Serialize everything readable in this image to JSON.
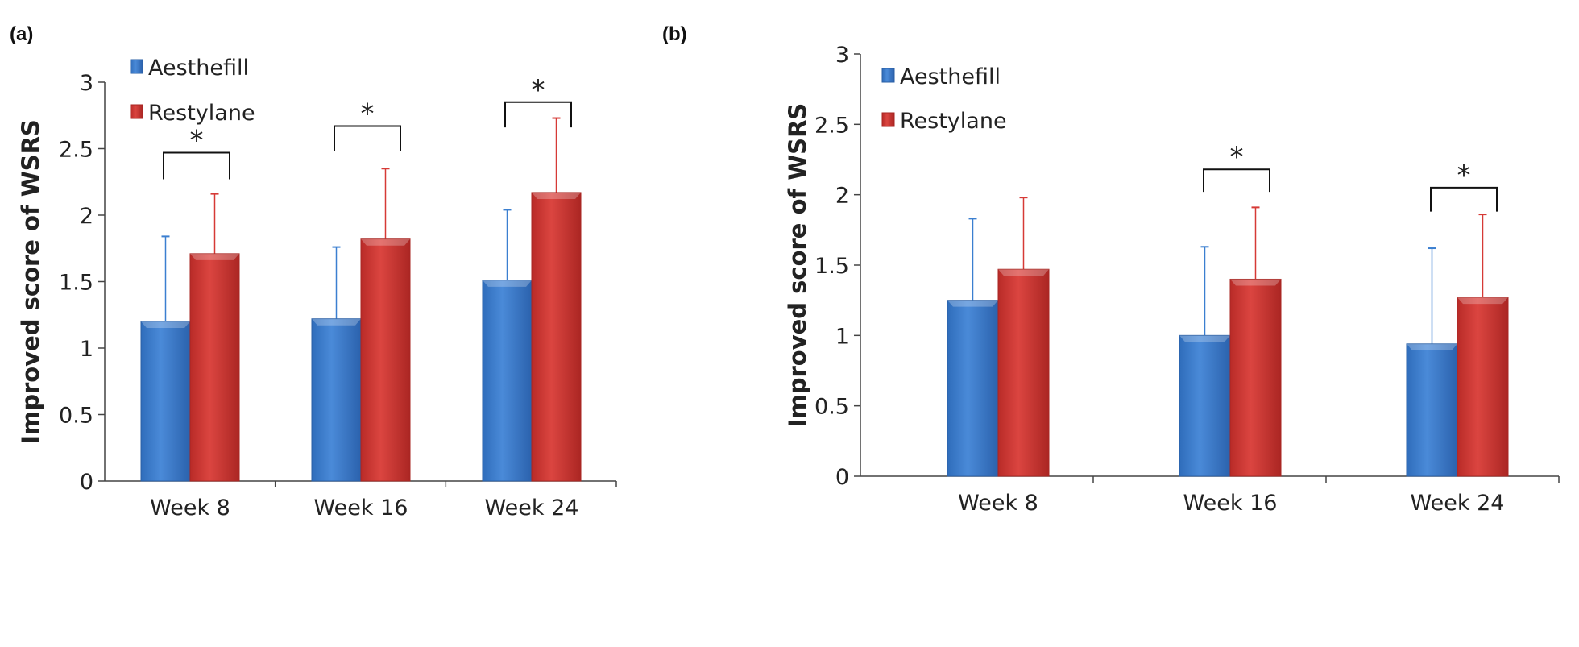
{
  "colors": {
    "Aesthefill": "#3b7fd0",
    "Restylane": "#d63a36",
    "Aesthefill_dark": "#2a5fa5",
    "Restylane_dark": "#a82622"
  },
  "chart_data": [
    {
      "type": "bar",
      "panel_label": "(a)",
      "ylabel": "Improved score of WSRS",
      "xlabel": "",
      "ylim": [
        0,
        3
      ],
      "yticks": [
        "0",
        "0.5",
        "1",
        "1.5",
        "2",
        "2.5",
        "3"
      ],
      "categories": [
        "Week 8",
        "Week 16",
        "Week 24"
      ],
      "legend": "top-left",
      "grid": false,
      "series": [
        {
          "name": "Aesthefill",
          "values": [
            1.2,
            1.22,
            1.51
          ],
          "error_upper": [
            1.84,
            1.76,
            2.04
          ]
        },
        {
          "name": "Restylane",
          "values": [
            1.71,
            1.82,
            2.17
          ],
          "error_upper": [
            2.16,
            2.35,
            2.73
          ]
        }
      ],
      "significance": [
        {
          "category": "Week 8",
          "marker": "*",
          "low": 2.27,
          "high": 2.47
        },
        {
          "category": "Week 16",
          "marker": "*",
          "low": 2.48,
          "high": 2.67
        },
        {
          "category": "Week 24",
          "marker": "*",
          "low": 2.66,
          "high": 2.85
        }
      ]
    },
    {
      "type": "bar",
      "panel_label": "(b)",
      "ylabel": "Improved score of WSRS",
      "xlabel": "",
      "ylim": [
        0,
        3
      ],
      "yticks": [
        "0",
        "0.5",
        "1",
        "1.5",
        "2",
        "2.5",
        "3"
      ],
      "categories": [
        "Week 8",
        "Week 16",
        "Week 24"
      ],
      "legend": "top-left",
      "grid": false,
      "series": [
        {
          "name": "Aesthefill",
          "values": [
            1.25,
            1.0,
            0.94
          ],
          "error_upper": [
            1.83,
            1.63,
            1.62
          ]
        },
        {
          "name": "Restylane",
          "values": [
            1.47,
            1.4,
            1.27
          ],
          "error_upper": [
            1.98,
            1.91,
            1.86
          ]
        }
      ],
      "significance": [
        {
          "category": "Week 16",
          "marker": "*",
          "low": 2.02,
          "high": 2.18
        },
        {
          "category": "Week 24",
          "marker": "*",
          "low": 1.88,
          "high": 2.05
        }
      ]
    }
  ]
}
